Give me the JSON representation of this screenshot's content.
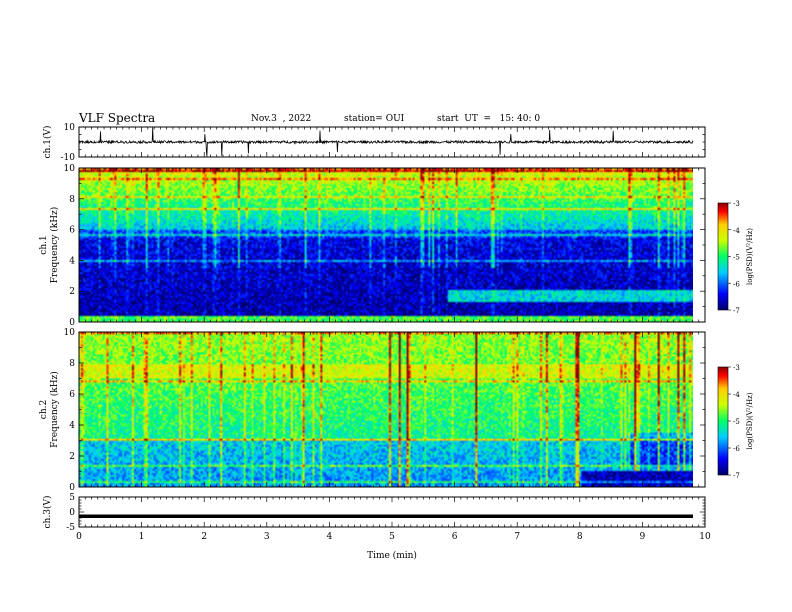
{
  "header": {
    "title": "VLF Spectra",
    "date": "Nov.3  , 2022",
    "station": "station= OUI",
    "start": "start  UT  =   15: 40: 0"
  },
  "colors": {
    "waveform": "#000000",
    "colormap": [
      "#000066",
      "#0000ff",
      "#00ccff",
      "#00ff66",
      "#ccff00",
      "#ffcc00",
      "#ff0000",
      "#880000"
    ]
  },
  "chart_data": [
    {
      "type": "line",
      "panel": "waveform-ch1",
      "ylabel": "ch.1(V)",
      "ylim": [
        -10,
        10
      ],
      "yticks": [
        "10",
        "-10"
      ],
      "xlim": [
        0,
        10
      ],
      "baseline": 0,
      "notes": "noisy waveform near 0 V with sparse spikes"
    },
    {
      "type": "heatmap",
      "panel": "spectrogram-ch1",
      "ylabel": "ch.1\nFrequency  (kHz)",
      "xlim": [
        0,
        10
      ],
      "ylim": [
        0,
        10
      ],
      "yticks": [
        "0",
        "2",
        "4",
        "6",
        "8",
        "10"
      ],
      "colorbar": {
        "label": "log(PSD)(V²/Hz)",
        "range": [
          -7,
          -3
        ],
        "ticks": [
          "-3",
          "-4",
          "-5",
          "-6",
          "-7"
        ]
      }
    },
    {
      "type": "heatmap",
      "panel": "spectrogram-ch2",
      "ylabel": "ch.2\nFrequency  (kHz)",
      "xlim": [
        0,
        10
      ],
      "ylim": [
        0,
        10
      ],
      "yticks": [
        "0",
        "2",
        "4",
        "6",
        "8",
        "10"
      ],
      "colorbar": {
        "label": "log(PSD)(V²/Hz)",
        "range": [
          -7,
          -3
        ],
        "ticks": [
          "-3",
          "-4",
          "-5",
          "-6",
          "-7"
        ]
      }
    },
    {
      "type": "line",
      "panel": "waveform-ch3",
      "ylabel": "ch.3(V)",
      "ylim": [
        -5,
        5
      ],
      "yticks": [
        "5",
        "0",
        "-5"
      ],
      "xlim": [
        0,
        10
      ],
      "baseline": -1.4,
      "notes": "flat thick line"
    },
    {
      "type": "axis",
      "panel": "time-axis",
      "xlabel": "Time  (min)",
      "xlim": [
        0,
        10
      ],
      "xticks": [
        "0",
        "1",
        "2",
        "3",
        "4",
        "5",
        "6",
        "7",
        "8",
        "9",
        "10"
      ]
    }
  ]
}
